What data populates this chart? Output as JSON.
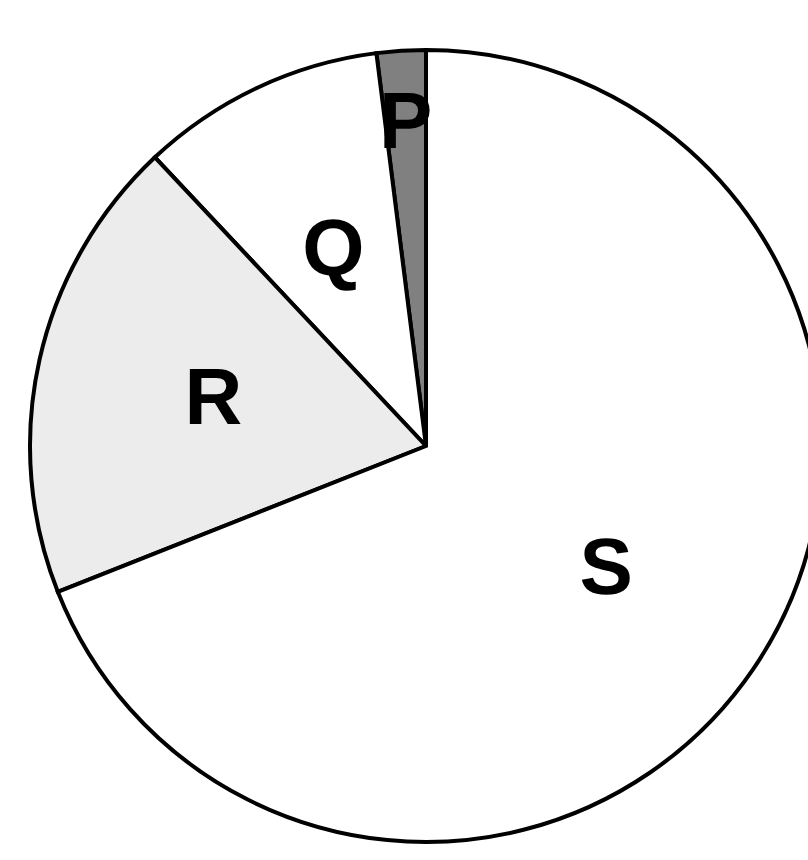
{
  "chart_data": {
    "type": "pie",
    "categories": [
      "P",
      "Q",
      "R",
      "S"
    ],
    "values": [
      2,
      10,
      19,
      69
    ],
    "colors": [
      "#808080",
      "#ffffff",
      "#ececec",
      "#ffffff"
    ],
    "legend": false
  }
}
